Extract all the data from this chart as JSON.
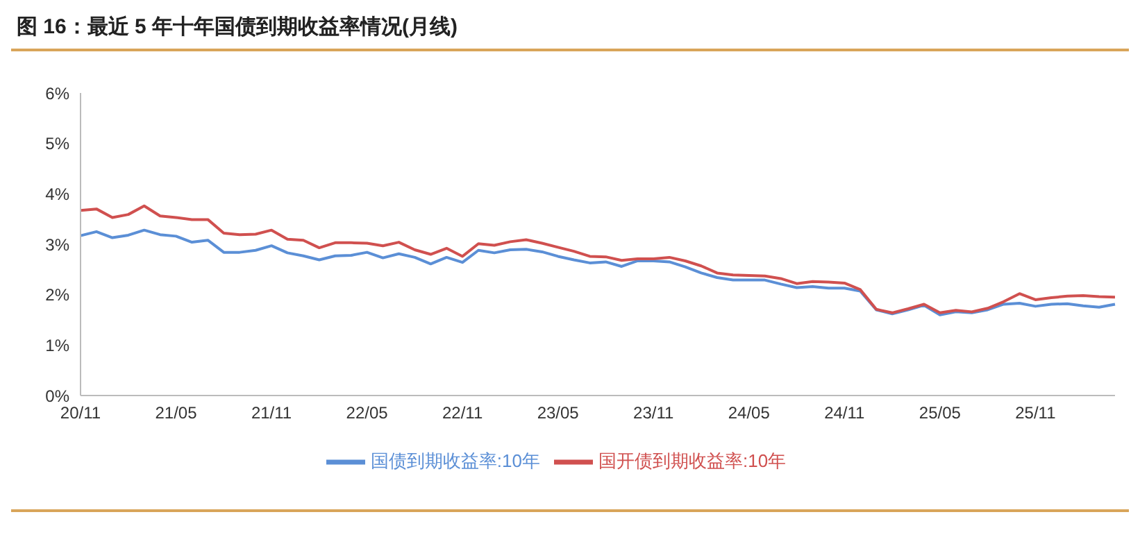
{
  "chart_data": {
    "type": "line",
    "title": "图 16：最近 5 年十年国债到期收益率情况(月线)",
    "categories": [
      "20/11",
      null,
      null,
      null,
      null,
      null,
      "21/05",
      null,
      null,
      null,
      null,
      null,
      "21/11",
      null,
      null,
      null,
      null,
      null,
      "22/05",
      null,
      null,
      null,
      null,
      null,
      "22/11",
      null,
      null,
      null,
      null,
      null,
      "23/05",
      null,
      null,
      null,
      null,
      null,
      "23/11",
      null,
      null,
      null,
      null,
      null,
      "24/05",
      null,
      null,
      null,
      null,
      null,
      "24/11",
      null,
      null,
      null,
      null,
      null,
      "25/05",
      null,
      null,
      null,
      null,
      null,
      "25/11",
      null,
      null,
      null,
      null,
      null
    ],
    "series": [
      {
        "name": "国债到期收益率:10年",
        "color": "#5b8fd6",
        "values": [
          3.17,
          3.25,
          3.13,
          3.18,
          3.28,
          3.19,
          3.16,
          3.04,
          3.08,
          2.84,
          2.84,
          2.88,
          2.97,
          2.83,
          2.77,
          2.69,
          2.77,
          2.78,
          2.84,
          2.73,
          2.81,
          2.74,
          2.61,
          2.74,
          2.64,
          2.88,
          2.83,
          2.89,
          2.9,
          2.85,
          2.76,
          2.69,
          2.63,
          2.65,
          2.56,
          2.67,
          2.67,
          2.65,
          2.55,
          2.43,
          2.34,
          2.29,
          2.29,
          2.29,
          2.21,
          2.14,
          2.16,
          2.13,
          2.13,
          2.07,
          1.7,
          1.62,
          1.7,
          1.79,
          1.6,
          1.66,
          1.64,
          1.7,
          1.81,
          1.83,
          1.77,
          1.81,
          1.82,
          1.78,
          1.75,
          1.81
        ]
      },
      {
        "name": "国开债到期收益率:10年",
        "color": "#d0504f",
        "values": [
          3.67,
          3.7,
          3.53,
          3.59,
          3.76,
          3.56,
          3.53,
          3.49,
          3.49,
          3.22,
          3.19,
          3.2,
          3.28,
          3.1,
          3.08,
          2.93,
          3.03,
          3.03,
          3.02,
          2.97,
          3.04,
          2.89,
          2.8,
          2.92,
          2.76,
          3.01,
          2.98,
          3.05,
          3.09,
          3.02,
          2.94,
          2.86,
          2.76,
          2.75,
          2.68,
          2.71,
          2.71,
          2.74,
          2.67,
          2.57,
          2.43,
          2.39,
          2.38,
          2.37,
          2.32,
          2.22,
          2.26,
          2.25,
          2.23,
          2.1,
          1.71,
          1.64,
          1.72,
          1.81,
          1.64,
          1.69,
          1.66,
          1.73,
          1.86,
          2.02,
          1.9,
          1.94,
          1.97,
          1.98,
          1.96,
          1.95
        ]
      }
    ],
    "ylim": [
      0,
      6
    ],
    "yticks": [
      {
        "value": 0,
        "label": "0%"
      },
      {
        "value": 1,
        "label": "1%"
      },
      {
        "value": 2,
        "label": "2%"
      },
      {
        "value": 3,
        "label": "3%"
      },
      {
        "value": 4,
        "label": "4%"
      },
      {
        "value": 5,
        "label": "5%"
      },
      {
        "value": 6,
        "label": "6%"
      }
    ],
    "grid": false,
    "legend": "bottom",
    "marker": "none",
    "line_style": "solid"
  }
}
